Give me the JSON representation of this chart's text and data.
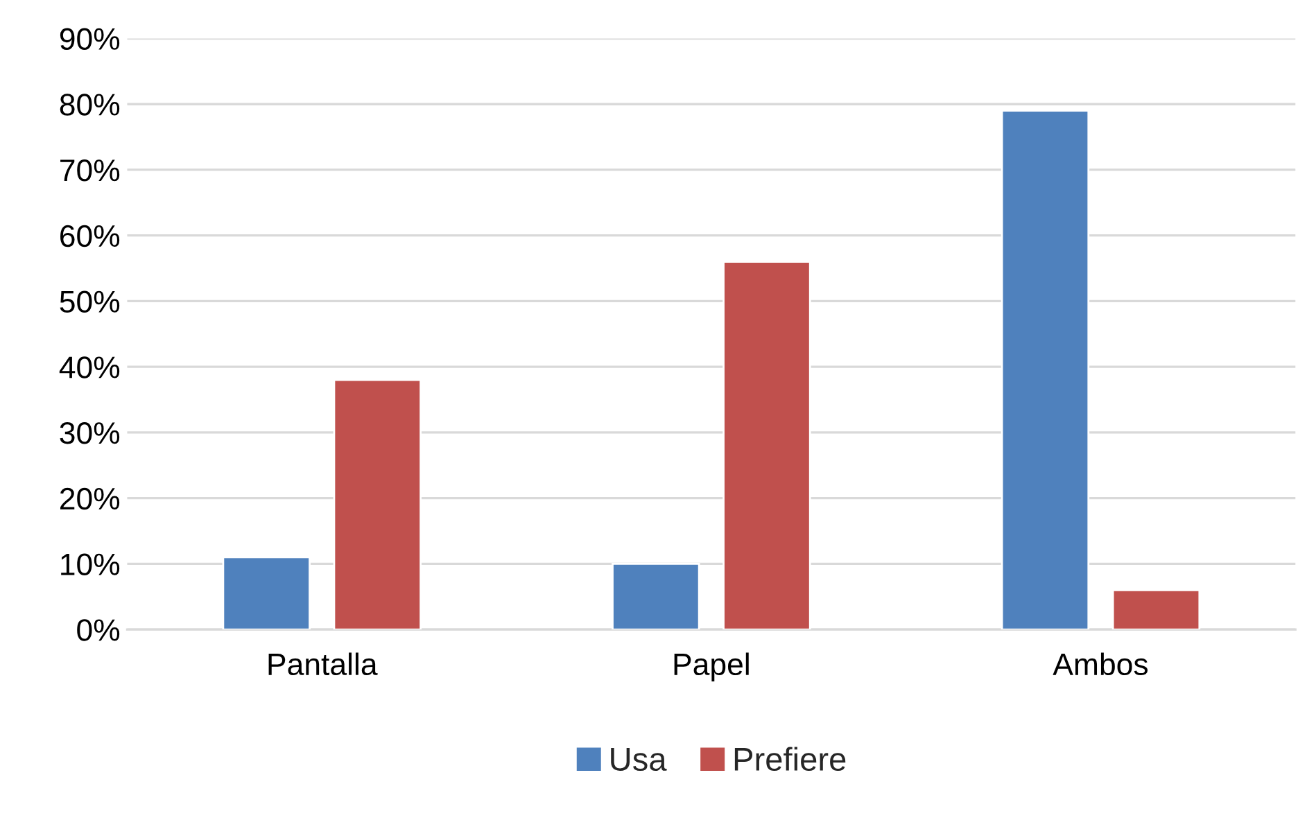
{
  "chart_data": {
    "type": "bar",
    "categories": [
      "Pantalla",
      "Papel",
      "Ambos"
    ],
    "series": [
      {
        "name": "Usa",
        "color": "#4f81bd",
        "values": [
          11,
          10,
          79
        ]
      },
      {
        "name": "Prefiere",
        "color": "#c0504d",
        "values": [
          38,
          56,
          6
        ]
      }
    ],
    "ylim": [
      0,
      90
    ],
    "yticks": [
      {
        "value": 0,
        "label": "0%"
      },
      {
        "value": 10,
        "label": "10%"
      },
      {
        "value": 20,
        "label": "20%"
      },
      {
        "value": 30,
        "label": "30%"
      },
      {
        "value": 40,
        "label": "40%"
      },
      {
        "value": 50,
        "label": "50%"
      },
      {
        "value": 60,
        "label": "60%"
      },
      {
        "value": 70,
        "label": "70%"
      },
      {
        "value": 80,
        "label": "80%"
      },
      {
        "value": 90,
        "label": "90%"
      }
    ],
    "grid": "y",
    "legend": "bottom"
  }
}
